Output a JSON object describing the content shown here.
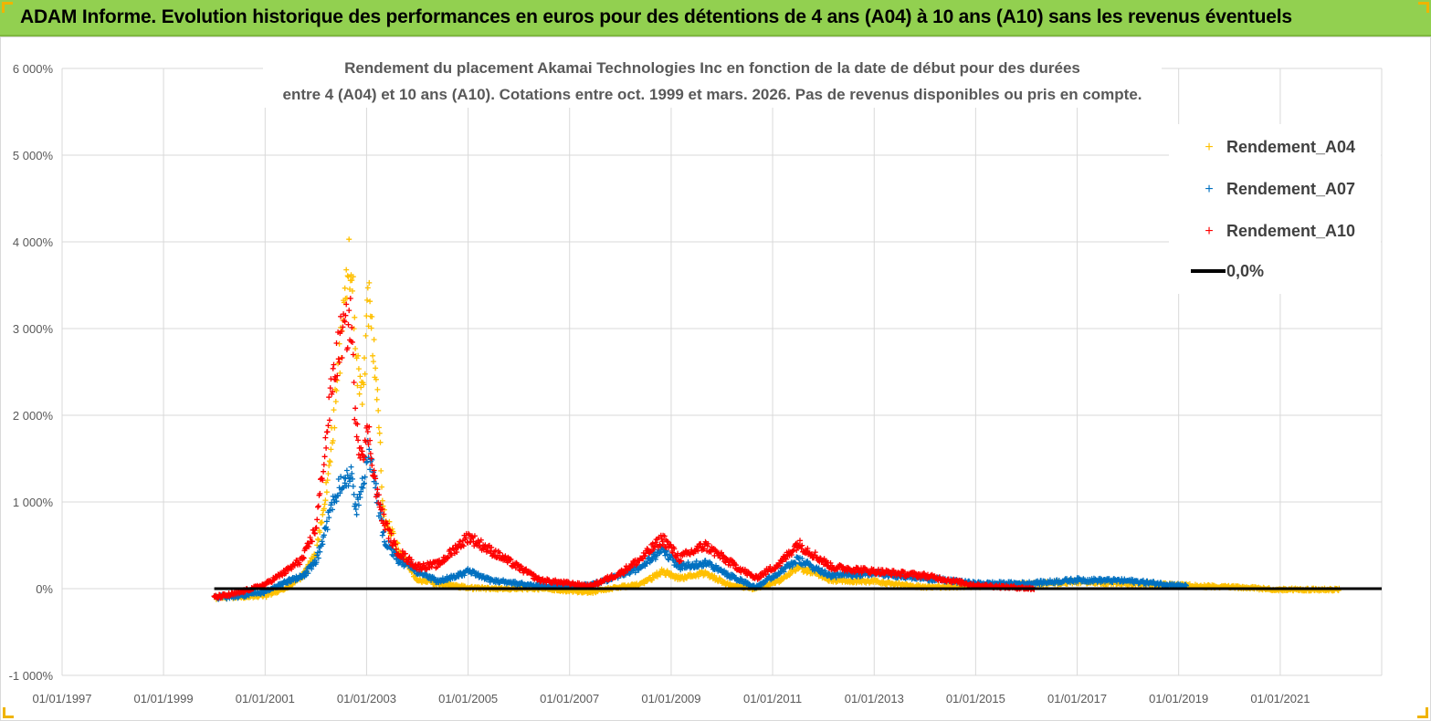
{
  "header": {
    "title": "ADAM Informe. Evolution historique des performances en euros pour des détentions de 4 ans (A04) à 10 ans (A10) sans les revenus éventuels"
  },
  "colors": {
    "banner": "#92d050",
    "accent": "#f0b400",
    "A04": "#ffc000",
    "A07": "#0070c0",
    "A10": "#ff0000",
    "zero": "#000000"
  },
  "chart_data": {
    "type": "scatter",
    "title_lines": [
      "Rendement du placement Akamai Technologies Inc en fonction de la date de début pour des durées",
      "entre 4 (A04) et 10 ans (A10).  Cotations entre oct. 1999 et mars. 2026. Pas de revenus disponibles ou pris  en compte."
    ],
    "xlabel": "",
    "ylabel": "",
    "x_ticks": [
      "01/01/1997",
      "01/01/1999",
      "01/01/2001",
      "01/01/2003",
      "01/01/2005",
      "01/01/2007",
      "01/01/2009",
      "01/01/2011",
      "01/01/2013",
      "01/01/2015",
      "01/01/2017",
      "01/01/2019",
      "01/01/2021"
    ],
    "xlim": [
      "1997-01-01",
      "2023-01-01"
    ],
    "y_ticks": [
      "-1 000%",
      "0%",
      "1 000%",
      "2 000%",
      "3 000%",
      "4 000%",
      "5 000%",
      "6 000%"
    ],
    "ylim": [
      -1000,
      6000
    ],
    "grid": true,
    "legend_position": "top-right",
    "legend": [
      "Rendement_A04",
      "Rendement_A07",
      "Rendement_A10",
      "0,0%"
    ],
    "series": [
      {
        "name": "Rendement_A04",
        "marker": "+",
        "start": "2000-01-01",
        "end": "2022-03-01",
        "points": [
          [
            "2000-01-01",
            -100
          ],
          [
            "2000-06-01",
            -90
          ],
          [
            "2001-01-01",
            -80
          ],
          [
            "2001-06-01",
            0
          ],
          [
            "2001-10-01",
            150
          ],
          [
            "2002-01-01",
            400
          ],
          [
            "2002-03-01",
            900
          ],
          [
            "2002-05-01",
            1800
          ],
          [
            "2002-07-01",
            2800
          ],
          [
            "2002-08-15",
            3600
          ],
          [
            "2002-09-15",
            3900
          ],
          [
            "2002-10-15",
            2600
          ],
          [
            "2002-12-01",
            2200
          ],
          [
            "2003-01-15",
            3300
          ],
          [
            "2003-03-15",
            2400
          ],
          [
            "2003-05-01",
            900
          ],
          [
            "2003-08-01",
            500
          ],
          [
            "2004-01-01",
            100
          ],
          [
            "2004-06-01",
            60
          ],
          [
            "2005-01-01",
            10
          ],
          [
            "2005-06-01",
            0
          ],
          [
            "2006-06-01",
            0
          ],
          [
            "2007-06-01",
            -40
          ],
          [
            "2008-01-01",
            20
          ],
          [
            "2008-06-01",
            50
          ],
          [
            "2008-11-01",
            200
          ],
          [
            "2009-03-01",
            120
          ],
          [
            "2009-09-01",
            180
          ],
          [
            "2010-03-01",
            40
          ],
          [
            "2010-09-01",
            0
          ],
          [
            "2011-03-01",
            100
          ],
          [
            "2011-07-01",
            250
          ],
          [
            "2012-03-01",
            100
          ],
          [
            "2013-01-01",
            80
          ],
          [
            "2014-01-01",
            20
          ],
          [
            "2015-01-01",
            30
          ],
          [
            "2016-01-01",
            50
          ],
          [
            "2017-01-01",
            80
          ],
          [
            "2018-01-01",
            60
          ],
          [
            "2019-01-01",
            40
          ],
          [
            "2020-01-01",
            20
          ],
          [
            "2021-01-01",
            -10
          ],
          [
            "2022-03-01",
            -10
          ]
        ]
      },
      {
        "name": "Rendement_A07",
        "marker": "+",
        "start": "2000-01-01",
        "end": "2019-03-01",
        "points": [
          [
            "2000-01-01",
            -100
          ],
          [
            "2000-06-01",
            -90
          ],
          [
            "2001-01-01",
            -40
          ],
          [
            "2001-06-01",
            80
          ],
          [
            "2001-10-01",
            150
          ],
          [
            "2002-01-01",
            300
          ],
          [
            "2002-03-01",
            600
          ],
          [
            "2002-05-01",
            1000
          ],
          [
            "2002-07-01",
            1250
          ],
          [
            "2002-09-15",
            1300
          ],
          [
            "2002-10-15",
            900
          ],
          [
            "2002-12-01",
            1200
          ],
          [
            "2003-01-15",
            1600
          ],
          [
            "2003-03-15",
            1100
          ],
          [
            "2003-05-01",
            600
          ],
          [
            "2003-08-01",
            350
          ],
          [
            "2004-01-01",
            200
          ],
          [
            "2004-06-01",
            80
          ],
          [
            "2005-01-01",
            200
          ],
          [
            "2005-06-01",
            100
          ],
          [
            "2006-06-01",
            30
          ],
          [
            "2007-06-01",
            40
          ],
          [
            "2008-01-01",
            150
          ],
          [
            "2008-06-01",
            250
          ],
          [
            "2008-11-01",
            450
          ],
          [
            "2009-03-01",
            250
          ],
          [
            "2009-09-01",
            300
          ],
          [
            "2010-03-01",
            150
          ],
          [
            "2010-09-01",
            20
          ],
          [
            "2011-03-01",
            200
          ],
          [
            "2011-07-01",
            330
          ],
          [
            "2012-03-01",
            150
          ],
          [
            "2013-01-01",
            180
          ],
          [
            "2014-01-01",
            120
          ],
          [
            "2015-01-01",
            60
          ],
          [
            "2016-01-01",
            60
          ],
          [
            "2017-01-01",
            100
          ],
          [
            "2018-01-01",
            90
          ],
          [
            "2019-03-01",
            30
          ]
        ]
      },
      {
        "name": "Rendement_A10",
        "marker": "+",
        "start": "2000-01-01",
        "end": "2016-03-01",
        "points": [
          [
            "2000-01-01",
            -100
          ],
          [
            "2000-06-01",
            -60
          ],
          [
            "2001-01-01",
            50
          ],
          [
            "2001-06-01",
            200
          ],
          [
            "2001-10-01",
            350
          ],
          [
            "2002-01-01",
            700
          ],
          [
            "2002-03-01",
            1500
          ],
          [
            "2002-05-01",
            2400
          ],
          [
            "2002-07-01",
            2900
          ],
          [
            "2002-09-15",
            3100
          ],
          [
            "2002-10-15",
            1800
          ],
          [
            "2002-12-01",
            1600
          ],
          [
            "2003-01-15",
            1800
          ],
          [
            "2003-03-15",
            1100
          ],
          [
            "2003-05-01",
            800
          ],
          [
            "2003-08-01",
            450
          ],
          [
            "2004-01-01",
            250
          ],
          [
            "2004-06-01",
            280
          ],
          [
            "2005-01-01",
            600
          ],
          [
            "2005-06-01",
            450
          ],
          [
            "2006-06-01",
            100
          ],
          [
            "2007-06-01",
            30
          ],
          [
            "2008-01-01",
            180
          ],
          [
            "2008-06-01",
            350
          ],
          [
            "2008-11-01",
            580
          ],
          [
            "2009-03-01",
            350
          ],
          [
            "2009-09-01",
            500
          ],
          [
            "2010-03-01",
            300
          ],
          [
            "2010-09-01",
            120
          ],
          [
            "2011-03-01",
            300
          ],
          [
            "2011-07-01",
            520
          ],
          [
            "2012-03-01",
            250
          ],
          [
            "2013-01-01",
            200
          ],
          [
            "2014-01-01",
            150
          ],
          [
            "2015-01-01",
            40
          ],
          [
            "2016-03-01",
            0
          ]
        ]
      }
    ]
  }
}
